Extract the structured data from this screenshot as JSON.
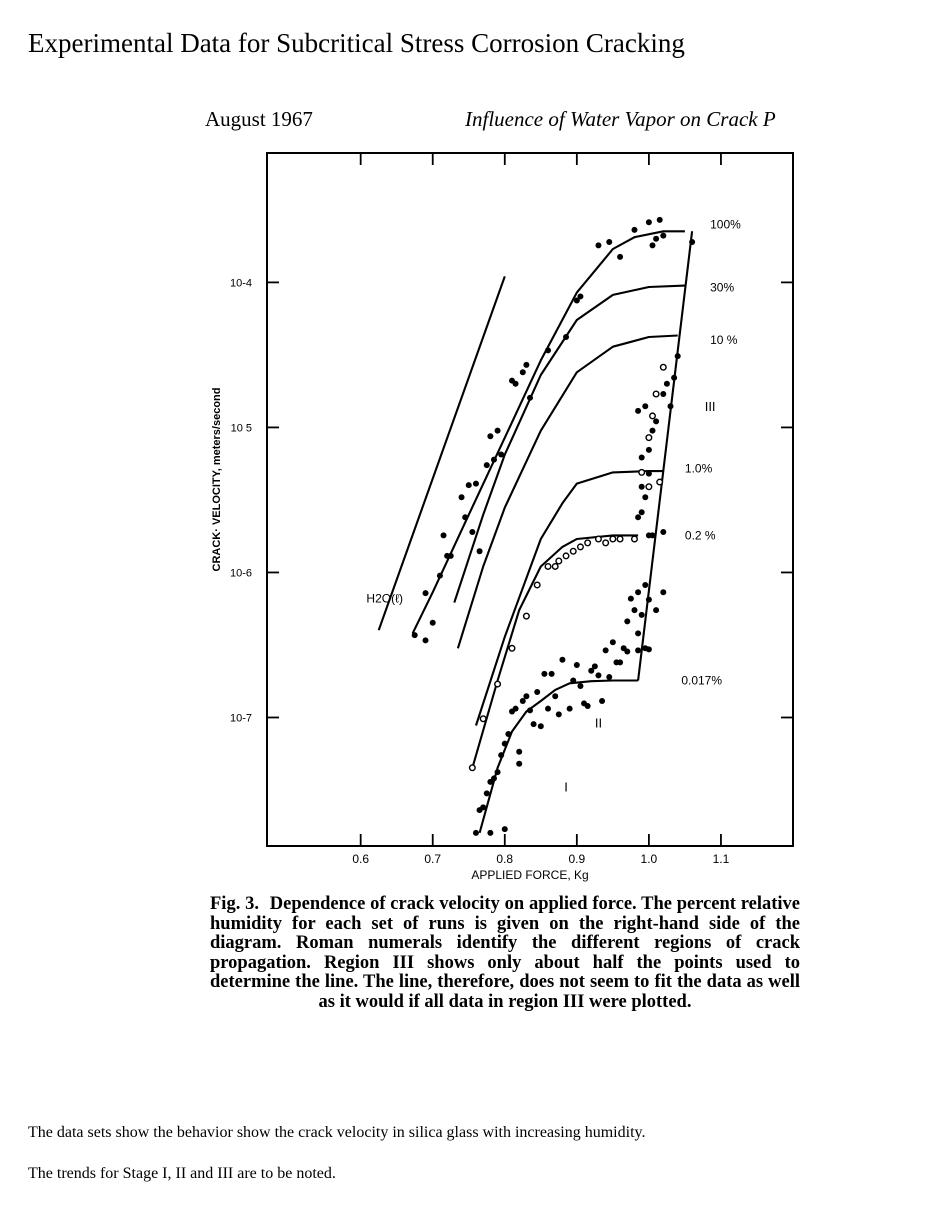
{
  "page_title": "Experimental Data for Subcritical Stress Corrosion Cracking",
  "running_header": {
    "date": "August 1967",
    "title": "Influence of Water Vapor on Crack P"
  },
  "caption": {
    "label": "Fig. 3.",
    "text": "Dependence of crack velocity on applied force. The percent relative humidity for each set of runs is given on the right-hand side of the diagram. Roman numerals identify the different regions of crack propagation. Region III shows only about half the points used to determine the line. The line, therefore, does not seem to fit the data as well as it would if all data in region III were plotted."
  },
  "notes": [
    "The data sets show the behavior show the crack velocity in silica glass with increasing humidity.",
    "The trends for Stage I, II and III are to be noted."
  ],
  "chart_data": {
    "type": "scatter",
    "xlabel": "APPLIED FORCE, Kg",
    "ylabel": "CRACK· VELOCITY, meters/second",
    "x_ticks": [
      0.6,
      0.7,
      0.8,
      0.9,
      1.0,
      1.1
    ],
    "x_tick_labels": [
      "0.6",
      "0.7",
      "0.8",
      "0.9",
      "1.0",
      "1.1"
    ],
    "y_scale": "log",
    "y_ticks": [
      1e-07,
      1e-06,
      1e-05,
      0.0001
    ],
    "y_tick_labels": [
      "10-7",
      "10-6",
      "10 5",
      "10-4"
    ],
    "xlim": [
      0.47,
      1.2
    ],
    "ylim": [
      1.3e-08,
      0.00078
    ],
    "grid": false,
    "region_labels": [
      {
        "text": "I",
        "x": 0.885,
        "y": 3.1e-08
      },
      {
        "text": "II",
        "x": 0.93,
        "y": 8.5e-08
      },
      {
        "text": "III",
        "x": 1.085,
        "y": 1.3e-05
      }
    ],
    "series": [
      {
        "name": "H2O(ℓ)",
        "label_x": 0.608,
        "label_y": 6.6e-07,
        "curve": {
          "x": [
            0.625,
            0.8
          ],
          "y": [
            4e-07,
            0.00011
          ]
        },
        "points": []
      },
      {
        "name": "100%",
        "label_x": 1.085,
        "label_y": 0.00025,
        "curve": {
          "x": [
            0.672,
            0.7,
            0.75,
            0.8,
            0.85,
            0.9,
            0.95,
            0.98,
            1.02,
            1.05
          ],
          "y": [
            3.8e-07,
            7.3e-07,
            2.5e-06,
            8.5e-06,
            2.9e-05,
            8.5e-05,
            0.00017,
            0.000205,
            0.000225,
            0.000225
          ]
        },
        "points": [
          [
            0.675,
            3.7e-07
          ],
          [
            0.69,
            3.4e-07
          ],
          [
            0.69,
            7.2e-07
          ],
          [
            0.7,
            4.5e-07
          ],
          [
            0.71,
            9.5e-07
          ],
          [
            0.715,
            1.8e-06
          ],
          [
            0.72,
            1.3e-06
          ],
          [
            0.725,
            1.3e-06
          ],
          [
            0.74,
            3.3e-06
          ],
          [
            0.745,
            2.4e-06
          ],
          [
            0.75,
            4e-06
          ],
          [
            0.755,
            1.9e-06
          ],
          [
            0.76,
            4.1e-06
          ],
          [
            0.765,
            1.4e-06
          ],
          [
            0.775,
            5.5e-06
          ],
          [
            0.78,
            8.7e-06
          ],
          [
            0.785,
            6e-06
          ],
          [
            0.79,
            9.5e-06
          ],
          [
            0.795,
            6.5e-06
          ],
          [
            0.81,
            2.1e-05
          ],
          [
            0.815,
            2e-05
          ],
          [
            0.825,
            2.4e-05
          ],
          [
            0.83,
            2.7e-05
          ],
          [
            0.835,
            1.6e-05
          ],
          [
            0.86,
            3.4e-05
          ],
          [
            0.885,
            4.2e-05
          ],
          [
            0.9,
            7.5e-05
          ],
          [
            0.905,
            8e-05
          ],
          [
            0.93,
            0.00018
          ],
          [
            0.945,
            0.00019
          ],
          [
            0.96,
            0.00015
          ],
          [
            0.98,
            0.00023
          ],
          [
            1.0,
            0.00026
          ],
          [
            1.005,
            0.00018
          ],
          [
            1.01,
            0.0002
          ],
          [
            1.015,
            0.00027
          ],
          [
            1.02,
            0.00021
          ],
          [
            1.06,
            0.00019
          ]
        ]
      },
      {
        "name": "30%",
        "label_x": 1.085,
        "label_y": 9.2e-05,
        "curve": {
          "x": [
            0.73,
            0.77,
            0.8,
            0.85,
            0.9,
            0.95,
            1.0,
            1.05
          ],
          "y": [
            6.2e-07,
            2.5e-06,
            6.5e-06,
            2.3e-05,
            5.5e-05,
            8.2e-05,
            9.3e-05,
            9.5e-05
          ]
        },
        "points": []
      },
      {
        "name": "10 %",
        "label_x": 1.085,
        "label_y": 4e-05,
        "curve": {
          "x": [
            0.735,
            0.77,
            0.8,
            0.85,
            0.9,
            0.95,
            1.0,
            1.04
          ],
          "y": [
            3e-07,
            1.1e-06,
            2.8e-06,
            9.5e-06,
            2.4e-05,
            3.6e-05,
            4.2e-05,
            4.3e-05
          ]
        },
        "points": []
      },
      {
        "name": "1.0%",
        "label_x": 1.05,
        "label_y": 5.2e-06,
        "curve": {
          "x": [
            0.76,
            0.8,
            0.85,
            0.88,
            0.9,
            0.95,
            1.0,
            1.02
          ],
          "y": [
            8.8e-08,
            3.6e-07,
            1.7e-06,
            3e-06,
            4.1e-06,
            4.9e-06,
            5e-06,
            5e-06
          ]
        },
        "points": []
      },
      {
        "name": "0.2 %",
        "label_x": 1.05,
        "label_y": 1.8e-06,
        "curve": {
          "x": [
            0.755,
            0.79,
            0.82,
            0.85,
            0.88,
            0.9,
            0.95,
            0.985
          ],
          "y": [
            4.5e-08,
            1.8e-07,
            5.5e-07,
            1.1e-06,
            1.5e-06,
            1.7e-06,
            1.8e-06,
            1.8e-06
          ]
        },
        "points_open": [
          [
            0.755,
            4.5e-08
          ],
          [
            0.77,
            9.8e-08
          ],
          [
            0.79,
            1.7e-07
          ],
          [
            0.81,
            3e-07
          ],
          [
            0.83,
            5e-07
          ],
          [
            0.845,
            8.2e-07
          ],
          [
            0.86,
            1.1e-06
          ],
          [
            0.87,
            1.1e-06
          ],
          [
            0.875,
            1.2e-06
          ],
          [
            0.885,
            1.3e-06
          ],
          [
            0.895,
            1.4e-06
          ],
          [
            0.905,
            1.5e-06
          ],
          [
            0.915,
            1.6e-06
          ],
          [
            0.93,
            1.7e-06
          ],
          [
            0.94,
            1.6e-06
          ],
          [
            0.95,
            1.7e-06
          ],
          [
            0.96,
            1.7e-06
          ],
          [
            0.98,
            1.7e-06
          ],
          [
            0.99,
            4.9e-06
          ],
          [
            1.0,
            8.5e-06
          ],
          [
            1.005,
            1.2e-05
          ],
          [
            1.01,
            1.7e-05
          ],
          [
            1.02,
            2.6e-05
          ],
          [
            1.015,
            4.2e-06
          ],
          [
            1.0,
            3.9e-06
          ]
        ]
      },
      {
        "name": "0.017%",
        "label_x": 1.045,
        "label_y": 1.8e-07,
        "curve": {
          "x": [
            0.765,
            0.79,
            0.81,
            0.83,
            0.85,
            0.87,
            0.89,
            0.92,
            0.95,
            0.985
          ],
          "y": [
            1.6e-08,
            4.5e-08,
            8e-08,
            1.1e-07,
            1.3e-07,
            1.55e-07,
            1.72e-07,
            1.78e-07,
            1.8e-07,
            1.8e-07
          ]
        },
        "points": [
          [
            0.76,
            1.6e-08
          ],
          [
            0.765,
            2.3e-08
          ],
          [
            0.77,
            2.4e-08
          ],
          [
            0.775,
            3e-08
          ],
          [
            0.78,
            3.6e-08
          ],
          [
            0.785,
            3.8e-08
          ],
          [
            0.78,
            1.6e-08
          ],
          [
            0.8,
            1.7e-08
          ],
          [
            0.79,
            4.2e-08
          ],
          [
            0.795,
            5.5e-08
          ],
          [
            0.8,
            6.6e-08
          ],
          [
            0.805,
            7.7e-08
          ],
          [
            0.81,
            1.1e-07
          ],
          [
            0.815,
            1.15e-07
          ],
          [
            0.82,
            5.8e-08
          ],
          [
            0.82,
            4.8e-08
          ],
          [
            0.825,
            1.3e-07
          ],
          [
            0.83,
            1.4e-07
          ],
          [
            0.835,
            1.12e-07
          ],
          [
            0.84,
            9e-08
          ],
          [
            0.845,
            1.5e-07
          ],
          [
            0.85,
            8.7e-08
          ],
          [
            0.855,
            2e-07
          ],
          [
            0.86,
            1.15e-07
          ],
          [
            0.865,
            2e-07
          ],
          [
            0.87,
            1.4e-07
          ],
          [
            0.875,
            1.05e-07
          ],
          [
            0.88,
            2.5e-07
          ],
          [
            0.89,
            1.15e-07
          ],
          [
            0.895,
            1.8e-07
          ],
          [
            0.9,
            2.3e-07
          ],
          [
            0.905,
            1.65e-07
          ],
          [
            0.91,
            1.25e-07
          ],
          [
            0.915,
            1.2e-07
          ],
          [
            0.92,
            2.1e-07
          ],
          [
            0.925,
            2.25e-07
          ],
          [
            0.93,
            1.95e-07
          ],
          [
            0.935,
            1.3e-07
          ],
          [
            0.94,
            2.9e-07
          ],
          [
            0.945,
            1.9e-07
          ],
          [
            0.95,
            3.3e-07
          ],
          [
            0.955,
            2.4e-07
          ],
          [
            0.96,
            2.4e-07
          ],
          [
            0.965,
            3e-07
          ],
          [
            0.97,
            4.6e-07
          ],
          [
            0.975,
            6.6e-07
          ],
          [
            0.98,
            5.5e-07
          ],
          [
            0.985,
            3.8e-07
          ],
          [
            0.99,
            5.1e-07
          ],
          [
            0.995,
            8.2e-07
          ],
          [
            1.0,
            6.5e-07
          ],
          [
            1.01,
            5.5e-07
          ],
          [
            1.02,
            7.3e-07
          ],
          [
            0.97,
            2.85e-07
          ],
          [
            0.985,
            2.9e-07
          ],
          [
            0.995,
            3e-07
          ],
          [
            1.0,
            2.95e-07
          ],
          [
            0.985,
            2.4e-06
          ],
          [
            0.99,
            2.6e-06
          ],
          [
            0.995,
            3.3e-06
          ],
          [
            0.99,
            6.2e-06
          ],
          [
            1.0,
            7e-06
          ],
          [
            1.005,
            9.5e-06
          ],
          [
            1.01,
            1.1e-05
          ],
          [
            0.985,
            1.3e-05
          ],
          [
            0.995,
            1.4e-05
          ],
          [
            1.02,
            1.7e-05
          ],
          [
            1.03,
            1.4e-05
          ],
          [
            1.025,
            2e-05
          ],
          [
            1.035,
            2.2e-05
          ],
          [
            1.04,
            3.1e-05
          ],
          [
            0.99,
            3.9e-06
          ],
          [
            1.0,
            4.8e-06
          ],
          [
            1.0,
            1.8e-06
          ],
          [
            1.005,
            1.8e-06
          ],
          [
            1.02,
            1.9e-06
          ],
          [
            0.985,
            7.3e-07
          ]
        ]
      },
      {
        "name": "Region III line",
        "label_x": 0,
        "label_y": 0,
        "curve": {
          "x": [
            0.985,
            1.06
          ],
          "y": [
            1.8e-07,
            0.000225
          ]
        },
        "points": []
      }
    ]
  }
}
